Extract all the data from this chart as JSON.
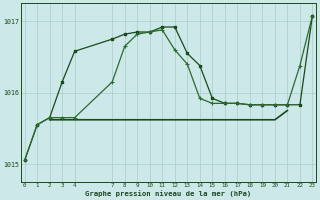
{
  "bg_color": "#cce8e8",
  "grid_color": "#aacccc",
  "line_color1": "#2d6a2d",
  "line_color2": "#1a4a1a",
  "title": "Graphe pression niveau de la mer (hPa)",
  "ylabel_ticks": [
    1015,
    1016,
    1017
  ],
  "xlim": [
    -0.3,
    23.3
  ],
  "ylim": [
    1014.75,
    1017.25
  ],
  "xticks": [
    0,
    1,
    2,
    3,
    4,
    7,
    8,
    9,
    10,
    11,
    12,
    13,
    14,
    15,
    16,
    17,
    18,
    19,
    20,
    21,
    22,
    23
  ],
  "line1_x": [
    0,
    1,
    2,
    3,
    4,
    7,
    8,
    9,
    10,
    11,
    12,
    13,
    14,
    15,
    16,
    17,
    18,
    19,
    20,
    21,
    22,
    23
  ],
  "line1_y": [
    1015.05,
    1015.55,
    1015.65,
    1015.65,
    1015.65,
    1016.15,
    1016.65,
    1016.82,
    1016.85,
    1016.88,
    1016.6,
    1016.4,
    1015.92,
    1015.85,
    1015.85,
    1015.85,
    1015.83,
    1015.83,
    1015.83,
    1015.83,
    1016.38,
    1017.08
  ],
  "line2_x": [
    0,
    1,
    2,
    3,
    4,
    7,
    8,
    9,
    10,
    11,
    12,
    13,
    14,
    15,
    16,
    17,
    18,
    19,
    20,
    21,
    22,
    23
  ],
  "line2_y": [
    1015.05,
    1015.55,
    1015.65,
    1016.15,
    1016.58,
    1016.75,
    1016.82,
    1016.85,
    1016.85,
    1016.92,
    1016.92,
    1016.55,
    1016.38,
    1015.92,
    1015.85,
    1015.85,
    1015.83,
    1015.83,
    1015.83,
    1015.83,
    1015.83,
    1017.08
  ],
  "line3_x": [
    2,
    3,
    4,
    7,
    8,
    9,
    10,
    11,
    12,
    13,
    14,
    15,
    16,
    17,
    18,
    19,
    20,
    21
  ],
  "line3_y": [
    1015.62,
    1015.62,
    1015.62,
    1015.62,
    1015.62,
    1015.62,
    1015.62,
    1015.62,
    1015.62,
    1015.62,
    1015.62,
    1015.62,
    1015.62,
    1015.62,
    1015.62,
    1015.62,
    1015.62,
    1015.75
  ]
}
